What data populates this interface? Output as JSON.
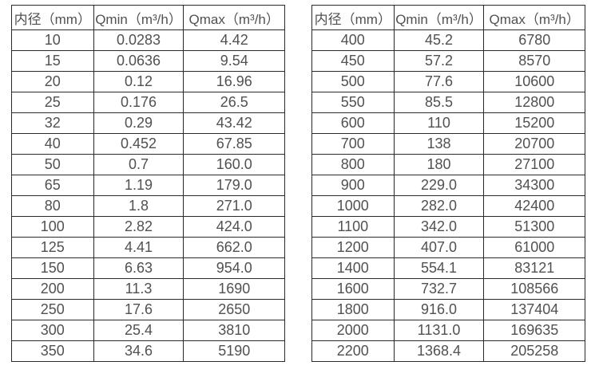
{
  "colors": {
    "background": "#ffffff",
    "text": "#515151",
    "border": "#2b2b2b"
  },
  "tables": [
    {
      "name": "small-diameter-flow-table",
      "headers": [
        "内径（mm）",
        "Qmin（m³/h）",
        "Qmax（m³/h）"
      ],
      "rows": [
        [
          "10",
          "0.0283",
          "4.42"
        ],
        [
          "15",
          "0.0636",
          "9.54"
        ],
        [
          "20",
          "0.12",
          "16.96"
        ],
        [
          "25",
          "0.176",
          "26.5"
        ],
        [
          "32",
          "0.29",
          "43.42"
        ],
        [
          "40",
          "0.452",
          "67.85"
        ],
        [
          "50",
          "0.7",
          "160.0"
        ],
        [
          "65",
          "1.19",
          "179.0"
        ],
        [
          "80",
          "1.8",
          "271.0"
        ],
        [
          "100",
          "2.82",
          "424.0"
        ],
        [
          "125",
          "4.41",
          "662.0"
        ],
        [
          "150",
          "6.63",
          "954.0"
        ],
        [
          "200",
          "11.3",
          "1690"
        ],
        [
          "250",
          "17.6",
          "2650"
        ],
        [
          "300",
          "25.4",
          "3810"
        ],
        [
          "350",
          "34.6",
          "5190"
        ]
      ]
    },
    {
      "name": "large-diameter-flow-table",
      "headers": [
        "内径（mm）",
        "Qmin（m³/h）",
        "Qmax（m³/h）"
      ],
      "rows": [
        [
          "400",
          "45.2",
          "6780"
        ],
        [
          "450",
          "57.2",
          "8570"
        ],
        [
          "500",
          "77.6",
          "10600"
        ],
        [
          "550",
          "85.5",
          "12800"
        ],
        [
          "600",
          "110",
          "15200"
        ],
        [
          "700",
          "138",
          "20700"
        ],
        [
          "800",
          "180",
          "27100"
        ],
        [
          "900",
          "229.0",
          "34300"
        ],
        [
          "1000",
          "282.0",
          "42400"
        ],
        [
          "1100",
          "342.0",
          "51300"
        ],
        [
          "1200",
          "407.0",
          "61000"
        ],
        [
          "1400",
          "554.1",
          "83121"
        ],
        [
          "1600",
          "732.7",
          "108566"
        ],
        [
          "1800",
          "916.0",
          "137404"
        ],
        [
          "2000",
          "1131.0",
          "169635"
        ],
        [
          "2200",
          "1368.4",
          "205258"
        ]
      ]
    }
  ]
}
